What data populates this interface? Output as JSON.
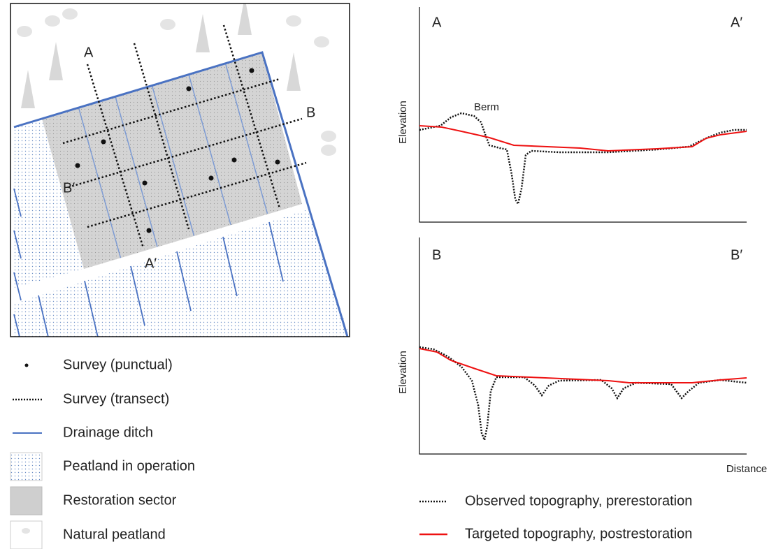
{
  "map": {
    "labels": {
      "a": "A",
      "a_prime": "A′",
      "b": "B",
      "b_prime": "B′"
    }
  },
  "profiles": [
    {
      "start": "A",
      "end": "A′",
      "y_label": "Elevation",
      "annotation": "Berm"
    },
    {
      "start": "B",
      "end": "B′",
      "y_label": "Elevation"
    }
  ],
  "x_label": "Distance",
  "legend": [
    "Survey (punctual)",
    "Survey (transect)",
    "Drainage ditch",
    "Peatland in operation",
    "Restoration sector",
    "Natural peatland"
  ],
  "profile_legend": [
    "Observed topography, prerestoration",
    "Targeted topography, postrestoration"
  ]
}
